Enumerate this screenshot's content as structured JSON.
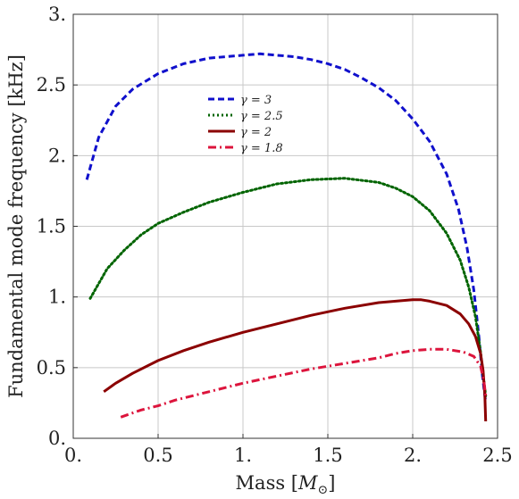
{
  "chart_data": {
    "type": "line",
    "title": "",
    "xlabel": "Mass [M_⊙]",
    "xlabel_main": "Mass [",
    "xlabel_symbol": "M",
    "xlabel_sub": "⊙",
    "xlabel_close": "]",
    "ylabel": "Fundamental mode frequency [kHz]",
    "xlim": [
      0,
      2.5
    ],
    "ylim": [
      0,
      3
    ],
    "xticks": [
      0,
      0.5,
      1,
      1.5,
      2,
      2.5
    ],
    "xtick_labels": [
      "0.",
      "0.5",
      "1.",
      "1.5",
      "2.",
      "2.5"
    ],
    "yticks": [
      0,
      0.5,
      1,
      1.5,
      2,
      2.5,
      3
    ],
    "ytick_labels": [
      "0.",
      "0.5",
      "1.",
      "1.5",
      "2.",
      "2.5",
      "3."
    ],
    "grid": true,
    "legend_position": "upper-center",
    "series": [
      {
        "name": "γ = 3",
        "legend_label": "γ = 3",
        "color": "#1010cc",
        "style": "dashed",
        "x": [
          0.08,
          0.15,
          0.25,
          0.35,
          0.5,
          0.65,
          0.8,
          1.0,
          1.1,
          1.2,
          1.3,
          1.4,
          1.5,
          1.6,
          1.7,
          1.8,
          1.9,
          2.0,
          2.1,
          2.2,
          2.27,
          2.32,
          2.36,
          2.39,
          2.41,
          2.425,
          2.43
        ],
        "y": [
          1.83,
          2.13,
          2.35,
          2.47,
          2.58,
          2.65,
          2.69,
          2.71,
          2.72,
          2.71,
          2.7,
          2.68,
          2.65,
          2.61,
          2.55,
          2.48,
          2.39,
          2.26,
          2.1,
          1.87,
          1.62,
          1.35,
          1.05,
          0.72,
          0.45,
          0.3,
          0.26
        ]
      },
      {
        "name": "γ = 2.5",
        "legend_label": "γ = 2.5",
        "color": "#006400",
        "style": "dotted",
        "x": [
          0.1,
          0.2,
          0.3,
          0.4,
          0.5,
          0.65,
          0.8,
          1.0,
          1.2,
          1.4,
          1.6,
          1.8,
          1.9,
          2.0,
          2.1,
          2.2,
          2.28,
          2.33,
          2.37,
          2.4,
          2.415,
          2.425,
          2.43
        ],
        "y": [
          0.99,
          1.2,
          1.33,
          1.44,
          1.52,
          1.6,
          1.67,
          1.74,
          1.8,
          1.83,
          1.84,
          1.81,
          1.77,
          1.71,
          1.61,
          1.45,
          1.26,
          1.07,
          0.86,
          0.61,
          0.45,
          0.35,
          0.3
        ]
      },
      {
        "name": "γ = 2",
        "legend_label": "γ = 2",
        "color": "#8b0000",
        "style": "solid",
        "x": [
          0.18,
          0.25,
          0.35,
          0.5,
          0.65,
          0.8,
          1.0,
          1.2,
          1.4,
          1.6,
          1.8,
          1.9,
          2.0,
          2.05,
          2.1,
          2.2,
          2.28,
          2.33,
          2.37,
          2.4,
          2.415,
          2.425,
          2.43
        ],
        "y": [
          0.33,
          0.39,
          0.46,
          0.55,
          0.62,
          0.68,
          0.75,
          0.81,
          0.87,
          0.92,
          0.96,
          0.97,
          0.98,
          0.98,
          0.97,
          0.94,
          0.88,
          0.81,
          0.72,
          0.6,
          0.48,
          0.3,
          0.12
        ]
      },
      {
        "name": "γ = 1.8",
        "legend_label": "γ = 1.8",
        "color": "#dc143c",
        "style": "dashdot",
        "x": [
          0.28,
          0.4,
          0.5,
          0.6,
          0.8,
          1.0,
          1.2,
          1.4,
          1.6,
          1.8,
          1.9,
          2.0,
          2.1,
          2.2,
          2.3,
          2.36,
          2.4,
          2.42,
          2.43
        ],
        "y": [
          0.15,
          0.2,
          0.23,
          0.27,
          0.33,
          0.39,
          0.44,
          0.49,
          0.53,
          0.57,
          0.6,
          0.62,
          0.63,
          0.63,
          0.61,
          0.58,
          0.51,
          0.4,
          0.3
        ]
      }
    ]
  }
}
